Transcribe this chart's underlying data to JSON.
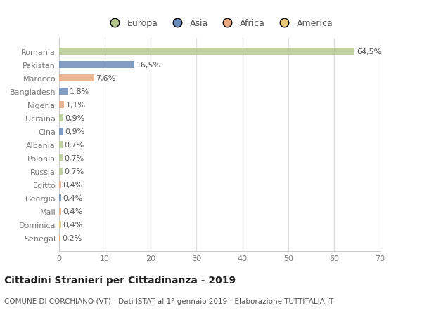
{
  "countries": [
    "Romania",
    "Pakistan",
    "Marocco",
    "Bangladesh",
    "Nigeria",
    "Ucraina",
    "Cina",
    "Albania",
    "Polonia",
    "Russia",
    "Egitto",
    "Georgia",
    "Mali",
    "Dominica",
    "Senegal"
  ],
  "values": [
    64.5,
    16.5,
    7.6,
    1.8,
    1.1,
    0.9,
    0.9,
    0.7,
    0.7,
    0.7,
    0.4,
    0.4,
    0.4,
    0.4,
    0.2
  ],
  "labels": [
    "64,5%",
    "16,5%",
    "7,6%",
    "1,8%",
    "1,1%",
    "0,9%",
    "0,9%",
    "0,7%",
    "0,7%",
    "0,7%",
    "0,4%",
    "0,4%",
    "0,4%",
    "0,4%",
    "0,2%"
  ],
  "colors": [
    "#b5c98e",
    "#6b8cba",
    "#e8a882",
    "#6b8cba",
    "#e8a882",
    "#b5c98e",
    "#6b8cba",
    "#b5c98e",
    "#b5c98e",
    "#b5c98e",
    "#e8a882",
    "#6b8cba",
    "#e8a882",
    "#e8c97a",
    "#e8a882"
  ],
  "legend_labels": [
    "Europa",
    "Asia",
    "Africa",
    "America"
  ],
  "legend_colors": [
    "#b5c98e",
    "#6b8cba",
    "#e8a882",
    "#e8c97a"
  ],
  "xlim": [
    0,
    70
  ],
  "xticks": [
    0,
    10,
    20,
    30,
    40,
    50,
    60,
    70
  ],
  "title": "Cittadini Stranieri per Cittadinanza - 2019",
  "subtitle": "COMUNE DI CORCHIANO (VT) - Dati ISTAT al 1° gennaio 2019 - Elaborazione TUTTITALIA.IT",
  "bg_color": "#ffffff",
  "plot_bg_color": "#ffffff",
  "bar_height": 0.55,
  "grid_color": "#e0e0e0",
  "title_fontsize": 10,
  "subtitle_fontsize": 7.5,
  "tick_fontsize": 8,
  "label_fontsize": 8,
  "legend_fontsize": 9
}
